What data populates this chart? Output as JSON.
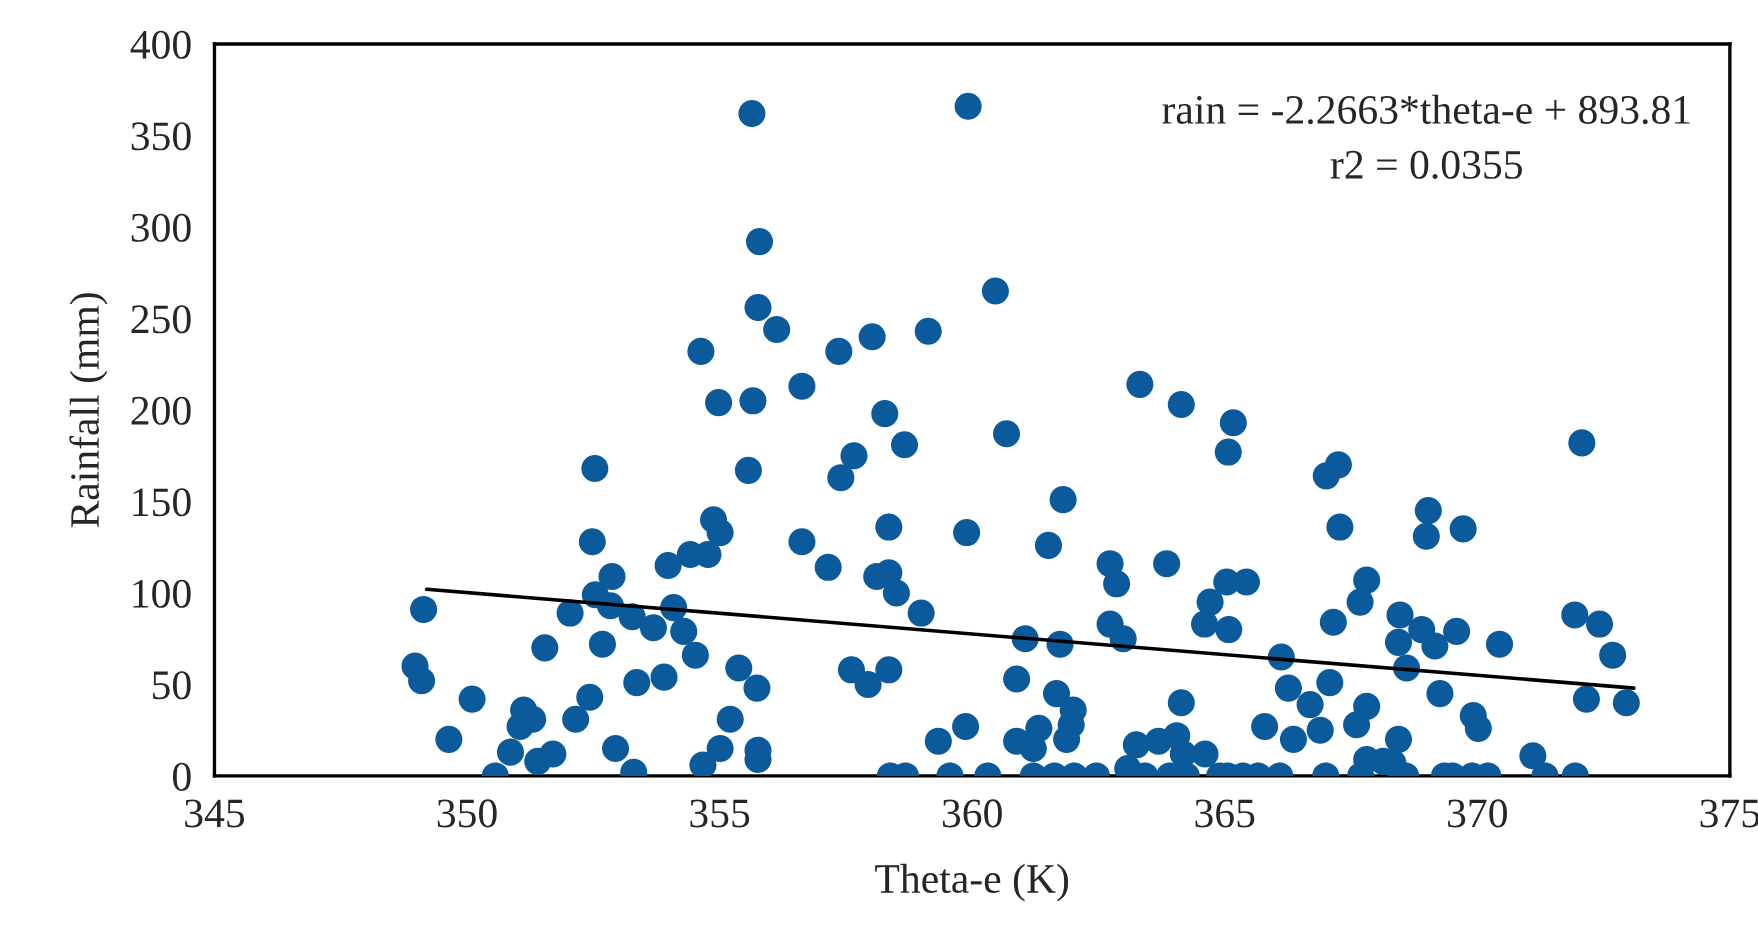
{
  "chart_data": {
    "type": "scatter",
    "xlabel": "Theta-e (K)",
    "ylabel": "Rainfall (mm)",
    "xlim": [
      345,
      375
    ],
    "xticks": [
      345,
      350,
      355,
      360,
      365,
      370,
      375
    ],
    "ylim": [
      0,
      400
    ],
    "yticks": [
      0,
      50,
      100,
      150,
      200,
      250,
      300,
      350,
      400
    ],
    "grid": false,
    "legend": false,
    "marker": "circle",
    "annotations": [
      "rain = -2.2663*theta-e + 893.81",
      "r2 = 0.0355"
    ],
    "series": [
      {
        "color": "#0b5a9c",
        "x": [
          349.14,
          348.97,
          349.1,
          350.1,
          349.64,
          350.56,
          350.86,
          351.12,
          351.3,
          351.05,
          351.4,
          351.7,
          351.54,
          352.04,
          352.15,
          352.43,
          352.53,
          352.48,
          352.54,
          352.87,
          352.68,
          352.84,
          352.94,
          353.3,
          353.27,
          353.69,
          353.36,
          353.98,
          354.09,
          354.29,
          354.52,
          353.9,
          354.42,
          354.77,
          354.88,
          355.01,
          354.63,
          354.98,
          355.64,
          355.79,
          355.76,
          356.13,
          355.66,
          355.57,
          355.38,
          355.74,
          355.21,
          355.01,
          354.67,
          355.76,
          355.76,
          356.63,
          356.63,
          357.15,
          357.36,
          358.02,
          358.27,
          357.66,
          357.4,
          358.35,
          358.11,
          358.35,
          358.5,
          357.61,
          357.94,
          358.35,
          358.66,
          358.99,
          359.13,
          360.46,
          360.68,
          359.92,
          359.89,
          361.8,
          361.51,
          362.73,
          362.86,
          363.32,
          364.14,
          365.17,
          365.07,
          363.85,
          364.71,
          365.04,
          365.43,
          364.6,
          365.08,
          362.73,
          362.99,
          361.05,
          361.74,
          360.88,
          361.67,
          362.0,
          361.96,
          361.87,
          364.14,
          361.32,
          360.88,
          361.21,
          359.87,
          359.33,
          363.25,
          363.69,
          364.05,
          364.18,
          364.61,
          365.79,
          366.36,
          366.12,
          366.26,
          366.69,
          367.01,
          367.25,
          367.28,
          372.07,
          369.03,
          368.99,
          369.72,
          367.81,
          367.68,
          367.15,
          368.47,
          368.44,
          368.9,
          369.16,
          369.59,
          370.44,
          368.6,
          371.93,
          372.42,
          372.68,
          372.16,
          372.95,
          369.26,
          369.92,
          370.02,
          367.08,
          366.89,
          367.61,
          367.81,
          368.44,
          371.1,
          367.81,
          368.14,
          368.33,
          358.38,
          358.68,
          359.56,
          360.31,
          361.21,
          361.63,
          362.02,
          362.46,
          363.08,
          363.42,
          363.91,
          364.24,
          364.9,
          365.06,
          365.36,
          365.66,
          366.09,
          367.0,
          367.69,
          368.58,
          369.35,
          369.51,
          369.9,
          370.21,
          371.34,
          371.94
        ],
        "values": [
          91,
          60,
          52,
          42,
          20,
          0,
          13,
          36,
          31,
          27,
          8,
          12,
          70,
          89,
          31,
          43,
          168,
          128,
          99,
          109,
          72,
          93,
          15,
          2,
          87,
          81,
          51,
          115,
          92,
          79,
          66,
          54,
          121,
          121,
          140,
          133,
          232,
          204,
          362,
          292,
          256,
          244,
          205,
          167,
          59,
          48,
          31,
          15,
          6,
          14,
          9,
          213,
          128,
          114,
          232,
          240,
          198,
          175,
          163,
          136,
          109,
          111,
          100,
          58,
          50,
          58,
          181,
          89,
          243,
          265,
          187,
          366,
          133,
          151,
          126,
          116,
          105,
          214,
          203,
          193,
          177,
          116,
          95,
          106,
          106,
          83,
          80,
          83,
          75,
          75,
          72,
          53,
          45,
          36,
          28,
          20,
          40,
          26,
          19,
          15,
          27,
          19,
          17,
          19,
          22,
          12,
          12,
          27,
          20,
          65,
          48,
          39,
          164,
          170,
          136,
          182,
          145,
          131,
          135,
          107,
          95,
          84,
          88,
          73,
          80,
          71,
          79,
          72,
          59,
          88,
          83,
          66,
          42,
          40,
          45,
          33,
          26,
          51,
          25,
          28,
          38,
          20,
          11,
          9,
          8,
          7,
          0,
          0,
          0,
          0,
          0,
          0,
          0,
          0,
          4,
          0,
          0,
          0,
          0,
          0,
          0,
          0,
          0,
          0,
          0,
          0,
          0,
          0,
          0,
          0,
          0,
          0
        ]
      },
      {
        "type": "line",
        "color": "#000000",
        "marker": "none",
        "line_style": "solid",
        "x": [
          349.2,
          373.1
        ],
        "values": [
          102,
          48
        ]
      }
    ]
  }
}
